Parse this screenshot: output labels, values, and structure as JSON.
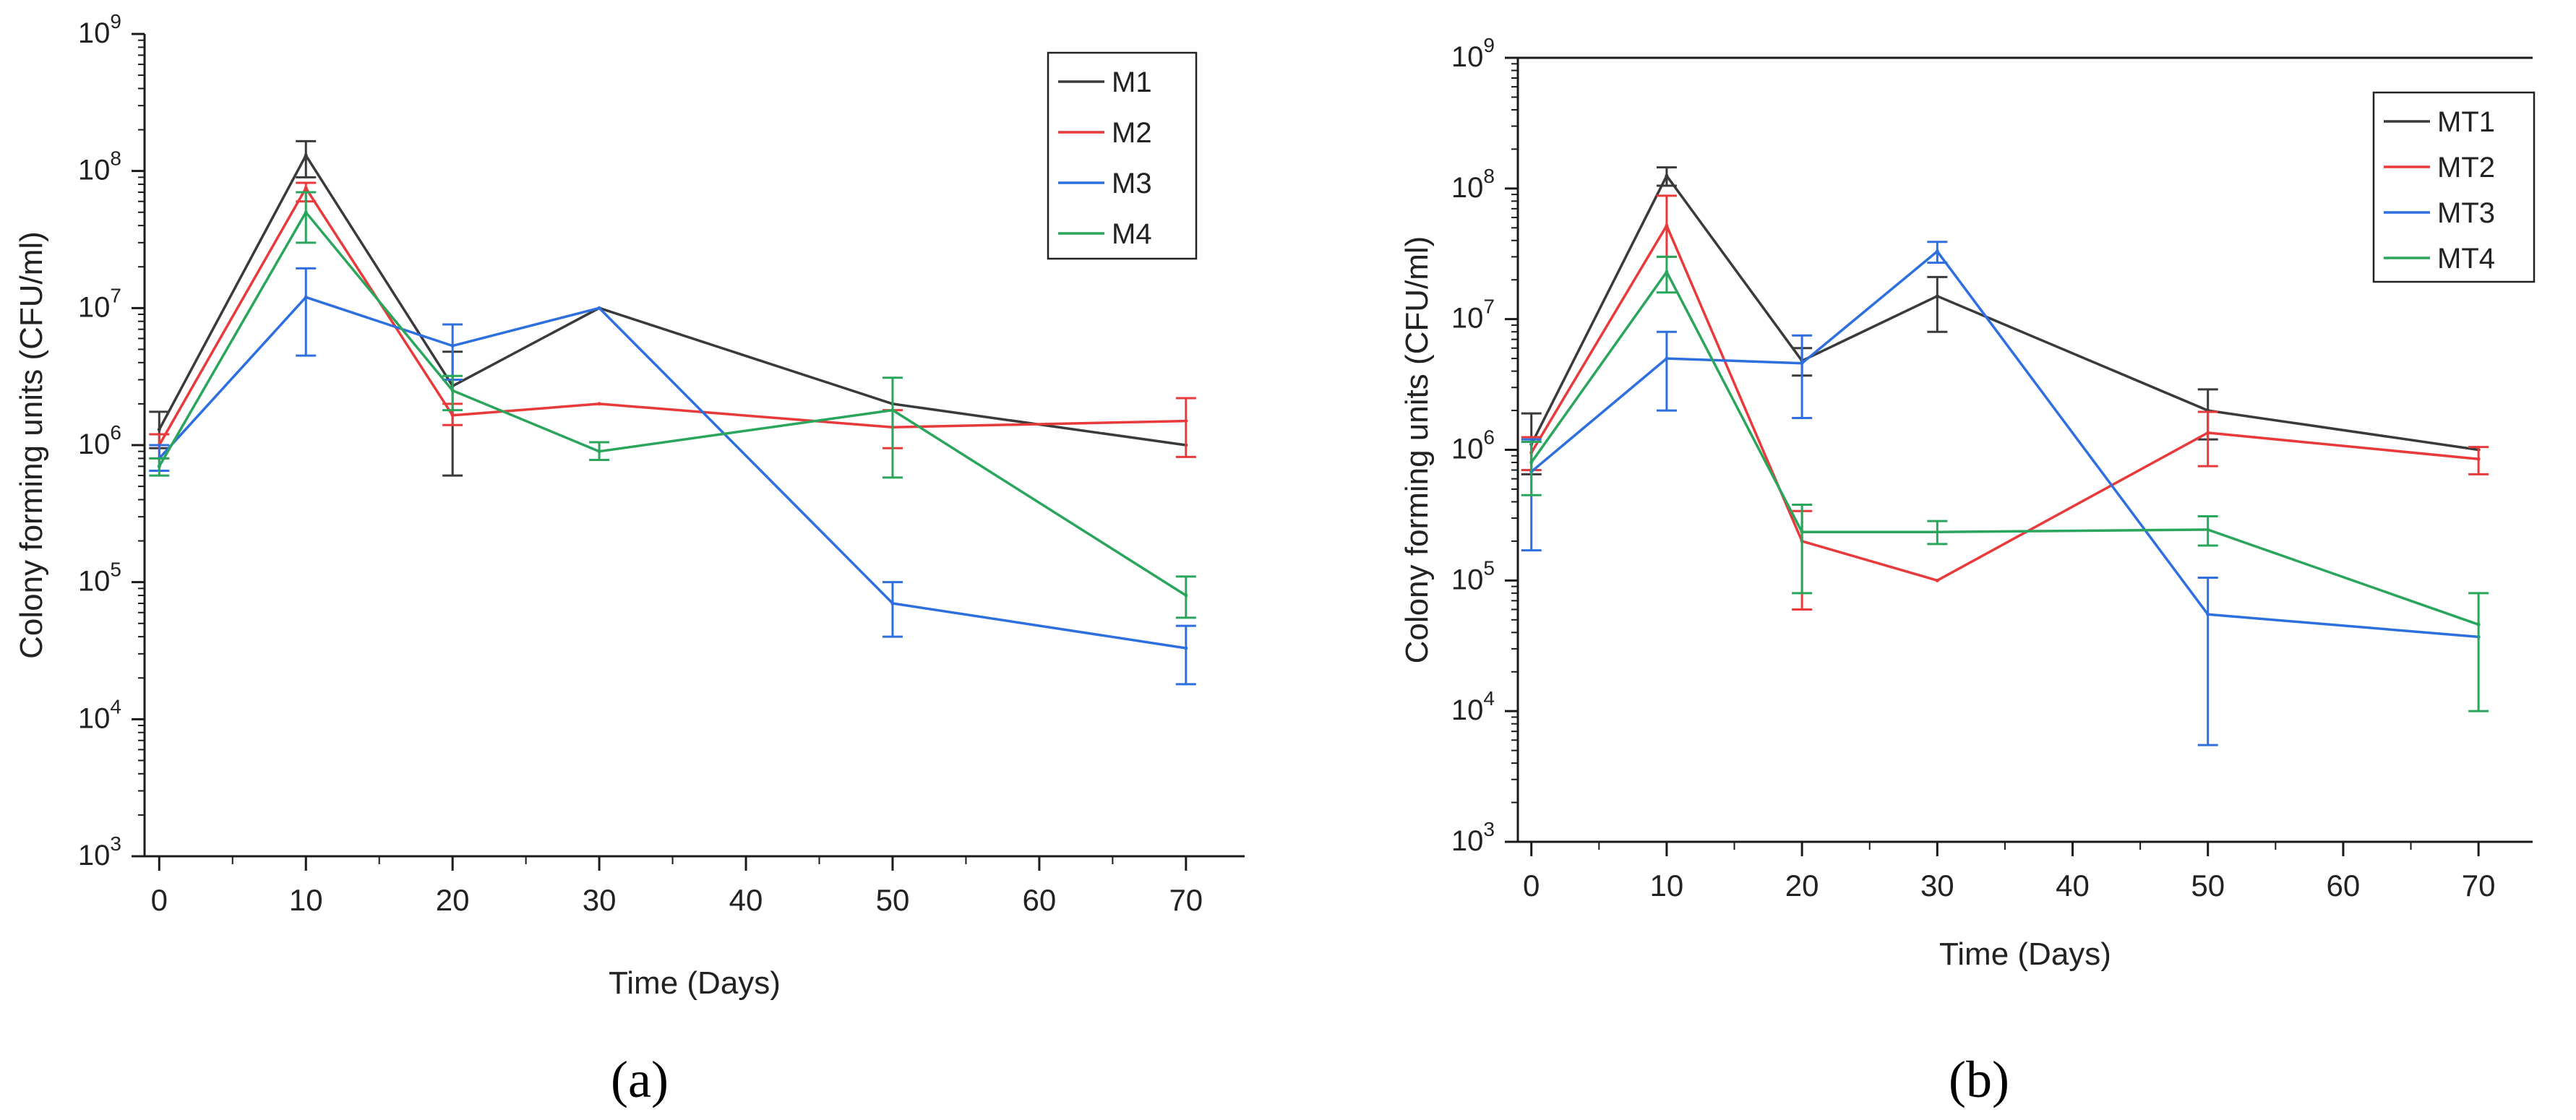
{
  "panel_labels": {
    "a": "(a)",
    "b": "(b)"
  },
  "colors": {
    "black": "#3a3a3a",
    "red": "#e8393b",
    "blue": "#2e6fe0",
    "green": "#2aa55c"
  },
  "chart_data": [
    {
      "type": "line",
      "panel": "a",
      "xlabel": "Time (Days)",
      "ylabel": "Colony forming units (CFU/ml)",
      "x": [
        0,
        10,
        20,
        30,
        50,
        70
      ],
      "xlim": [
        -1,
        74
      ],
      "xticks": [
        0,
        10,
        20,
        30,
        40,
        50,
        60,
        70
      ],
      "ylim": [
        1000,
        1000000000
      ],
      "yscale": "log",
      "yticks": [
        {
          "value": 1000,
          "base": "10",
          "exp": "3"
        },
        {
          "value": 10000,
          "base": "10",
          "exp": "4"
        },
        {
          "value": 100000,
          "base": "10",
          "exp": "5"
        },
        {
          "value": 1000000,
          "base": "10",
          "exp": "6"
        },
        {
          "value": 10000000,
          "base": "10",
          "exp": "7"
        },
        {
          "value": 100000000,
          "base": "10",
          "exp": "8"
        },
        {
          "value": 1000000000,
          "base": "10",
          "exp": "9"
        }
      ],
      "grid": false,
      "legend_position": "top-right",
      "series": [
        {
          "name": "M1",
          "color": "#3a3a3a",
          "values": [
            1300000,
            130000000,
            2700000,
            10000000,
            2000000,
            1000000
          ],
          "err_low": [
            950000,
            90000000,
            600000,
            null,
            null,
            null
          ],
          "err_high": [
            1750000,
            165000000,
            4800000,
            null,
            null,
            null
          ]
        },
        {
          "name": "M2",
          "color": "#e8393b",
          "values": [
            1000000,
            75000000,
            1650000,
            2000000,
            1350000,
            1500000
          ],
          "err_low": [
            800000,
            60000000,
            1400000,
            null,
            950000,
            820000
          ],
          "err_high": [
            1200000,
            82000000,
            2000000,
            null,
            1800000,
            2200000
          ]
        },
        {
          "name": "M3",
          "color": "#2e6fe0",
          "values": [
            800000,
            12000000,
            5300000,
            10000000,
            70000,
            33000
          ],
          "err_low": [
            650000,
            4500000,
            3000000,
            null,
            40000,
            18000
          ],
          "err_high": [
            1000000,
            19500000,
            7600000,
            null,
            100000,
            48000
          ]
        },
        {
          "name": "M4",
          "color": "#2aa55c",
          "values": [
            700000,
            50000000,
            2500000,
            900000,
            1800000,
            80000
          ],
          "err_low": [
            600000,
            30000000,
            1800000,
            780000,
            580000,
            55000
          ],
          "err_high": [
            800000,
            70000000,
            3200000,
            1050000,
            3100000,
            110000
          ]
        }
      ]
    },
    {
      "type": "line",
      "panel": "b",
      "xlabel": "Time (Days)",
      "ylabel": "Colony forming units (CFU/ml)",
      "x": [
        0,
        10,
        20,
        30,
        50,
        70
      ],
      "xlim": [
        -1,
        74
      ],
      "xticks": [
        0,
        10,
        20,
        30,
        40,
        50,
        60,
        70
      ],
      "ylim": [
        1000,
        1000000000
      ],
      "yscale": "log",
      "yticks": [
        {
          "value": 1000,
          "base": "10",
          "exp": "3"
        },
        {
          "value": 10000,
          "base": "10",
          "exp": "4"
        },
        {
          "value": 100000,
          "base": "10",
          "exp": "5"
        },
        {
          "value": 1000000,
          "base": "10",
          "exp": "6"
        },
        {
          "value": 10000000,
          "base": "10",
          "exp": "7"
        },
        {
          "value": 100000000,
          "base": "10",
          "exp": "8"
        },
        {
          "value": 1000000000,
          "base": "10",
          "exp": "9"
        }
      ],
      "grid": false,
      "legend_position": "top-right",
      "series": [
        {
          "name": "MT1",
          "color": "#3a3a3a",
          "values": [
            1100000,
            125000000,
            4800000,
            15000000,
            2000000,
            1000000
          ],
          "err_low": [
            650000,
            105000000,
            3700000,
            8000000,
            1200000,
            null
          ],
          "err_high": [
            1900000,
            145000000,
            6000000,
            21000000,
            2900000,
            null
          ]
        },
        {
          "name": "MT2",
          "color": "#e8393b",
          "values": [
            950000,
            52000000,
            200000,
            100000,
            1350000,
            850000
          ],
          "err_low": [
            700000,
            30000000,
            60000,
            null,
            750000,
            650000
          ],
          "err_high": [
            1250000,
            88000000,
            340000,
            null,
            1950000,
            1050000
          ]
        },
        {
          "name": "MT3",
          "color": "#2e6fe0",
          "values": [
            680000,
            5000000,
            4600000,
            33000000,
            55000,
            37000
          ],
          "err_low": [
            170000,
            2000000,
            1750000,
            27000000,
            5500,
            null
          ],
          "err_high": [
            1200000,
            8000000,
            7500000,
            39000000,
            105000,
            null
          ]
        },
        {
          "name": "MT4",
          "color": "#2aa55c",
          "values": [
            800000,
            23000000,
            235000,
            235000,
            245000,
            46000
          ],
          "err_low": [
            450000,
            16000000,
            80000,
            190000,
            185000,
            10000
          ],
          "err_high": [
            1150000,
            30000000,
            380000,
            285000,
            310000,
            80000
          ]
        }
      ]
    }
  ]
}
